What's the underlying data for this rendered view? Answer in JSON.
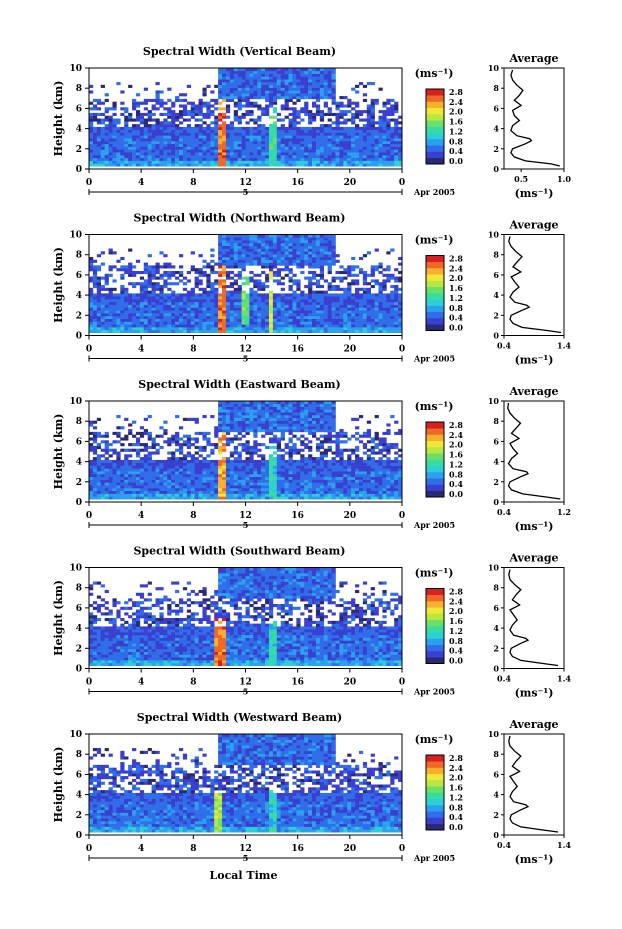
{
  "figure": {
    "xlabel": "Local Time",
    "month_label": "Apr 2005",
    "day_label": "5",
    "ylabel": "Height (km)",
    "unit_label": "(ms⁻¹)",
    "avg_title": "Average",
    "avg_xlabel": "(ms⁻¹)"
  },
  "colorbar": {
    "ticks": [
      "2.8",
      "2.4",
      "2.0",
      "1.6",
      "1.2",
      "0.8",
      "0.4",
      "0.0"
    ],
    "colors": [
      "#2a2a72",
      "#3a3fd0",
      "#2f6ee8",
      "#2aa0ee",
      "#2ccfd6",
      "#38dca0",
      "#6ae06a",
      "#b8e840",
      "#f0e838",
      "#f8b02c",
      "#f06828",
      "#d82020"
    ]
  },
  "chart_data": [
    {
      "type": "heatmap",
      "title": "Spectral Width (Vertical Beam)",
      "x_ticks": [
        "0",
        "4",
        "8",
        "12",
        "16",
        "20",
        "0"
      ],
      "xlim": [
        0,
        24
      ],
      "y_ticks": [
        "0",
        "2",
        "4",
        "6",
        "8",
        "10"
      ],
      "ylim": [
        0,
        10
      ],
      "zlim": [
        0,
        3.0
      ],
      "features": [
        {
          "x": [
            0,
            24
          ],
          "y": [
            0.3,
            3.3
          ],
          "z": 0.6
        },
        {
          "x": [
            0,
            24
          ],
          "y": [
            3.3,
            4.2
          ],
          "z": 0.5
        },
        {
          "x": [
            0,
            24
          ],
          "y": [
            4.2,
            8.5
          ],
          "z": 0.4
        },
        {
          "x": [
            10.0,
            10.6
          ],
          "y": [
            0.3,
            7.0
          ],
          "z": 2.6
        },
        {
          "x": [
            13.9,
            14.3
          ],
          "y": [
            0.3,
            6.0
          ],
          "z": 1.4
        },
        {
          "x": [
            10,
            19
          ],
          "y": [
            7.0,
            10.0
          ],
          "z": 0.6
        },
        {
          "x": [
            0,
            24
          ],
          "y": [
            0.3,
            0.9
          ],
          "z": 0.9
        }
      ],
      "avg_profile": {
        "xlim": [
          0.3,
          1.0
        ],
        "x_ticks": [
          "0.5",
          "1.0"
        ],
        "y_ticks": [
          "0",
          "2",
          "4",
          "6",
          "8",
          "10"
        ],
        "height_km": [
          0.3,
          0.5,
          0.8,
          1.2,
          1.6,
          2.0,
          2.5,
          2.8,
          3.0,
          3.3,
          3.8,
          4.3,
          4.8,
          5.3,
          5.8,
          6.3,
          6.8,
          7.3,
          7.8,
          8.3,
          8.8,
          9.3,
          9.8
        ],
        "width": [
          0.95,
          0.85,
          0.55,
          0.42,
          0.38,
          0.4,
          0.55,
          0.62,
          0.6,
          0.45,
          0.38,
          0.4,
          0.48,
          0.42,
          0.4,
          0.5,
          0.42,
          0.48,
          0.52,
          0.45,
          0.4,
          0.38,
          0.4
        ]
      }
    },
    {
      "type": "heatmap",
      "title": "Spectral Width (Northward Beam)",
      "x_ticks": [
        "0",
        "4",
        "8",
        "12",
        "16",
        "20",
        "0"
      ],
      "xlim": [
        0,
        24
      ],
      "y_ticks": [
        "0",
        "2",
        "4",
        "6",
        "8",
        "10"
      ],
      "ylim": [
        0,
        10
      ],
      "zlim": [
        0,
        3.0
      ],
      "features": [
        {
          "x": [
            0,
            24
          ],
          "y": [
            0.3,
            3.3
          ],
          "z": 0.6
        },
        {
          "x": [
            0,
            24
          ],
          "y": [
            3.3,
            4.2
          ],
          "z": 0.5
        },
        {
          "x": [
            0,
            24
          ],
          "y": [
            4.2,
            8.5
          ],
          "z": 0.4
        },
        {
          "x": [
            9.8,
            10.4
          ],
          "y": [
            0.3,
            7.0
          ],
          "z": 2.6
        },
        {
          "x": [
            11.8,
            12.2
          ],
          "y": [
            1.0,
            6.5
          ],
          "z": 1.6
        },
        {
          "x": [
            13.8,
            14.2
          ],
          "y": [
            0.3,
            6.5
          ],
          "z": 2.0
        },
        {
          "x": [
            10,
            19
          ],
          "y": [
            7.0,
            10.0
          ],
          "z": 0.6
        },
        {
          "x": [
            0,
            24
          ],
          "y": [
            0.3,
            0.9
          ],
          "z": 0.9
        }
      ],
      "avg_profile": {
        "xlim": [
          0.4,
          1.4
        ],
        "x_ticks": [
          "0.4",
          "1.4"
        ],
        "y_ticks": [
          "0",
          "2",
          "4",
          "6",
          "8",
          "10"
        ],
        "height_km": [
          0.3,
          0.5,
          0.8,
          1.2,
          1.6,
          2.0,
          2.5,
          2.8,
          3.0,
          3.3,
          3.8,
          4.3,
          4.8,
          5.3,
          5.8,
          6.3,
          6.8,
          7.3,
          7.8,
          8.3,
          8.8,
          9.3,
          9.8
        ],
        "width": [
          1.35,
          1.1,
          0.7,
          0.55,
          0.5,
          0.52,
          0.7,
          0.82,
          0.78,
          0.58,
          0.5,
          0.55,
          0.65,
          0.58,
          0.52,
          0.68,
          0.55,
          0.62,
          0.7,
          0.6,
          0.52,
          0.48,
          0.5
        ]
      }
    },
    {
      "type": "heatmap",
      "title": "Spectral Width (Eastward Beam)",
      "x_ticks": [
        "0",
        "4",
        "8",
        "12",
        "16",
        "20",
        "0"
      ],
      "xlim": [
        0,
        24
      ],
      "y_ticks": [
        "0",
        "2",
        "4",
        "6",
        "8",
        "10"
      ],
      "ylim": [
        0,
        10
      ],
      "zlim": [
        0,
        3.0
      ],
      "features": [
        {
          "x": [
            0,
            24
          ],
          "y": [
            0.3,
            3.3
          ],
          "z": 0.6
        },
        {
          "x": [
            0,
            24
          ],
          "y": [
            3.3,
            4.2
          ],
          "z": 0.5
        },
        {
          "x": [
            0,
            24
          ],
          "y": [
            4.2,
            8.5
          ],
          "z": 0.4
        },
        {
          "x": [
            9.8,
            10.4
          ],
          "y": [
            0.3,
            7.0
          ],
          "z": 2.4
        },
        {
          "x": [
            13.9,
            14.3
          ],
          "y": [
            0.3,
            5.5
          ],
          "z": 1.2
        },
        {
          "x": [
            10,
            19
          ],
          "y": [
            7.0,
            10.0
          ],
          "z": 0.6
        },
        {
          "x": [
            0,
            24
          ],
          "y": [
            0.3,
            0.9
          ],
          "z": 0.9
        }
      ],
      "avg_profile": {
        "xlim": [
          0.4,
          1.2
        ],
        "x_ticks": [
          "0.4",
          "1.2"
        ],
        "y_ticks": [
          "0",
          "2",
          "4",
          "6",
          "8",
          "10"
        ],
        "height_km": [
          0.3,
          0.5,
          0.8,
          1.2,
          1.6,
          2.0,
          2.5,
          2.8,
          3.0,
          3.3,
          3.8,
          4.3,
          4.8,
          5.3,
          5.8,
          6.3,
          6.8,
          7.3,
          7.8,
          8.3,
          8.8,
          9.3,
          9.8
        ],
        "width": [
          1.15,
          0.95,
          0.65,
          0.5,
          0.46,
          0.48,
          0.62,
          0.72,
          0.7,
          0.52,
          0.46,
          0.5,
          0.58,
          0.52,
          0.48,
          0.6,
          0.5,
          0.56,
          0.62,
          0.54,
          0.48,
          0.45,
          0.46
        ]
      }
    },
    {
      "type": "heatmap",
      "title": "Spectral Width (Southward Beam)",
      "x_ticks": [
        "0",
        "4",
        "8",
        "12",
        "16",
        "20",
        "0"
      ],
      "xlim": [
        0,
        24
      ],
      "y_ticks": [
        "0",
        "2",
        "4",
        "6",
        "8",
        "10"
      ],
      "ylim": [
        0,
        10
      ],
      "zlim": [
        0,
        3.0
      ],
      "features": [
        {
          "x": [
            0,
            24
          ],
          "y": [
            0.3,
            3.3
          ],
          "z": 0.6
        },
        {
          "x": [
            0,
            24
          ],
          "y": [
            3.3,
            4.2
          ],
          "z": 0.5
        },
        {
          "x": [
            0,
            24
          ],
          "y": [
            4.2,
            8.5
          ],
          "z": 0.4
        },
        {
          "x": [
            9.6,
            10.4
          ],
          "y": [
            0.3,
            5.0
          ],
          "z": 2.6
        },
        {
          "x": [
            13.9,
            14.3
          ],
          "y": [
            0.3,
            5.0
          ],
          "z": 1.2
        },
        {
          "x": [
            10,
            19
          ],
          "y": [
            7.0,
            10.0
          ],
          "z": 0.6
        },
        {
          "x": [
            0,
            24
          ],
          "y": [
            0.3,
            0.9
          ],
          "z": 0.9
        }
      ],
      "avg_profile": {
        "xlim": [
          0.4,
          1.4
        ],
        "x_ticks": [
          "0.4",
          "1.4"
        ],
        "y_ticks": [
          "0",
          "2",
          "4",
          "6",
          "8",
          "10"
        ],
        "height_km": [
          0.3,
          0.5,
          0.8,
          1.2,
          1.6,
          2.0,
          2.5,
          2.8,
          3.0,
          3.3,
          3.8,
          4.3,
          4.8,
          5.3,
          5.8,
          6.3,
          6.8,
          7.3,
          7.8,
          8.3,
          8.8,
          9.3,
          9.8
        ],
        "width": [
          1.3,
          1.05,
          0.68,
          0.54,
          0.5,
          0.52,
          0.68,
          0.8,
          0.76,
          0.56,
          0.5,
          0.54,
          0.62,
          0.56,
          0.5,
          0.66,
          0.54,
          0.6,
          0.68,
          0.58,
          0.5,
          0.48,
          0.5
        ]
      }
    },
    {
      "type": "heatmap",
      "title": "Spectral Width (Westward Beam)",
      "x_ticks": [
        "0",
        "4",
        "8",
        "12",
        "16",
        "20",
        "0"
      ],
      "xlim": [
        0,
        24
      ],
      "y_ticks": [
        "0",
        "2",
        "4",
        "6",
        "8",
        "10"
      ],
      "ylim": [
        0,
        10
      ],
      "zlim": [
        0,
        3.0
      ],
      "features": [
        {
          "x": [
            0,
            24
          ],
          "y": [
            0.3,
            3.3
          ],
          "z": 0.6
        },
        {
          "x": [
            0,
            24
          ],
          "y": [
            3.3,
            4.2
          ],
          "z": 0.5
        },
        {
          "x": [
            0,
            24
          ],
          "y": [
            4.2,
            8.5
          ],
          "z": 0.4
        },
        {
          "x": [
            9.6,
            10.2
          ],
          "y": [
            0.3,
            4.5
          ],
          "z": 1.8
        },
        {
          "x": [
            13.9,
            14.3
          ],
          "y": [
            0.3,
            5.0
          ],
          "z": 1.2
        },
        {
          "x": [
            10,
            19
          ],
          "y": [
            7.0,
            10.0
          ],
          "z": 0.6
        },
        {
          "x": [
            0,
            24
          ],
          "y": [
            0.3,
            0.9
          ],
          "z": 0.9
        }
      ],
      "avg_profile": {
        "xlim": [
          0.4,
          1.4
        ],
        "x_ticks": [
          "0.4",
          "1.4"
        ],
        "y_ticks": [
          "0",
          "2",
          "4",
          "6",
          "8",
          "10"
        ],
        "height_km": [
          0.3,
          0.5,
          0.8,
          1.2,
          1.6,
          2.0,
          2.5,
          2.8,
          3.0,
          3.3,
          3.8,
          4.3,
          4.8,
          5.3,
          5.8,
          6.3,
          6.8,
          7.3,
          7.8,
          8.3,
          8.8,
          9.3,
          9.8
        ],
        "width": [
          1.3,
          1.05,
          0.68,
          0.54,
          0.5,
          0.52,
          0.68,
          0.8,
          0.76,
          0.56,
          0.5,
          0.54,
          0.62,
          0.56,
          0.5,
          0.66,
          0.54,
          0.6,
          0.68,
          0.58,
          0.5,
          0.48,
          0.5
        ]
      }
    }
  ]
}
